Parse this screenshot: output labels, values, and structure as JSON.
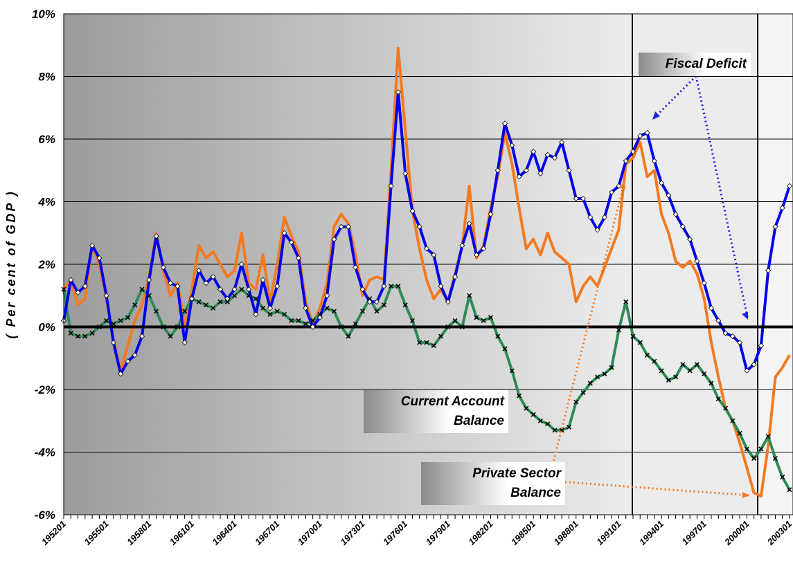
{
  "chart_data": {
    "type": "line",
    "y_label": "( Per cent of GDP )",
    "categories": [
      "195201",
      null,
      null,
      null,
      null,
      null,
      "195501",
      null,
      null,
      null,
      null,
      null,
      "195801",
      null,
      null,
      null,
      null,
      null,
      "196101",
      null,
      null,
      null,
      null,
      null,
      "196401",
      null,
      null,
      null,
      null,
      null,
      "196701",
      null,
      null,
      null,
      null,
      null,
      "197001",
      null,
      null,
      null,
      null,
      null,
      "197301",
      null,
      null,
      null,
      null,
      null,
      "197601",
      null,
      null,
      null,
      null,
      null,
      "197901",
      null,
      null,
      null,
      null,
      null,
      "198201",
      null,
      null,
      null,
      null,
      null,
      "198501",
      null,
      null,
      null,
      null,
      null,
      "198801",
      null,
      null,
      null,
      null,
      null,
      "199101",
      null,
      null,
      null,
      null,
      null,
      "199401",
      null,
      null,
      null,
      null,
      null,
      "199701",
      null,
      null,
      null,
      null,
      null,
      "200001",
      null,
      null,
      null,
      null,
      null,
      "200301"
    ],
    "series": [
      {
        "name": "Private Sector Balance",
        "color": "#f47a20",
        "marker": "none",
        "values": [
          1.2,
          1.5,
          0.7,
          0.9,
          2.6,
          2.0,
          0.9,
          -0.4,
          -1.4,
          -0.6,
          0.2,
          0.7,
          1.6,
          3.0,
          1.8,
          1.0,
          1.4,
          0.0,
          1.2,
          2.6,
          2.2,
          2.4,
          2.0,
          1.6,
          1.8,
          3.0,
          1.4,
          1.2,
          2.3,
          0.8,
          2.0,
          3.5,
          2.9,
          2.4,
          0.8,
          0.1,
          0.6,
          1.4,
          3.2,
          3.6,
          3.3,
          2.3,
          1.0,
          1.5,
          1.6,
          1.5,
          5.0,
          8.9,
          6.3,
          3.7,
          2.5,
          1.5,
          0.9,
          1.2,
          0.8,
          1.7,
          2.6,
          4.5,
          2.2,
          2.6,
          3.8,
          4.8,
          6.2,
          5.2,
          3.8,
          2.5,
          2.8,
          2.3,
          3.0,
          2.4,
          2.2,
          2.0,
          0.8,
          1.3,
          1.6,
          1.3,
          1.9,
          2.5,
          3.1,
          5.2,
          5.4,
          5.9,
          4.8,
          5.0,
          3.6,
          3.0,
          2.1,
          1.9,
          2.1,
          1.7,
          0.9,
          -0.5,
          -1.6,
          -2.6,
          -3.0,
          -3.7,
          -4.5,
          -5.3,
          -5.4,
          -3.8,
          -1.6,
          -1.3,
          -0.9
        ]
      },
      {
        "name": "Current Account Balance",
        "color": "#2e8b57",
        "marker": "x",
        "values": [
          1.2,
          -0.2,
          -0.3,
          -0.3,
          -0.2,
          0.0,
          0.2,
          0.1,
          0.2,
          0.3,
          0.7,
          1.2,
          1.0,
          0.5,
          0.0,
          -0.3,
          0.0,
          0.5,
          0.9,
          0.8,
          0.7,
          0.6,
          0.8,
          0.8,
          1.0,
          1.2,
          1.0,
          0.9,
          0.6,
          0.4,
          0.5,
          0.4,
          0.2,
          0.2,
          0.1,
          0.2,
          0.4,
          0.6,
          0.5,
          0.0,
          -0.3,
          0.1,
          0.5,
          0.9,
          0.5,
          0.7,
          1.3,
          1.3,
          0.7,
          0.2,
          -0.5,
          -0.5,
          -0.6,
          -0.3,
          0.0,
          0.2,
          0.0,
          1.0,
          0.3,
          0.2,
          0.3,
          -0.3,
          -0.7,
          -1.4,
          -2.2,
          -2.6,
          -2.8,
          -3.0,
          -3.1,
          -3.3,
          -3.3,
          -3.2,
          -2.4,
          -2.1,
          -1.8,
          -1.6,
          -1.5,
          -1.3,
          -0.1,
          0.8,
          -0.3,
          -0.5,
          -0.9,
          -1.1,
          -1.4,
          -1.7,
          -1.6,
          -1.2,
          -1.4,
          -1.2,
          -1.5,
          -1.8,
          -2.3,
          -2.6,
          -3.0,
          -3.4,
          -3.9,
          -4.2,
          -3.9,
          -3.5,
          -4.2,
          -4.8,
          -5.2
        ]
      },
      {
        "name": "Fiscal Deficit",
        "color": "#0000ee",
        "marker": "diamond",
        "values": [
          0.2,
          1.5,
          1.1,
          1.3,
          2.6,
          2.2,
          1.0,
          -0.5,
          -1.5,
          -1.1,
          -0.9,
          -0.3,
          1.5,
          2.9,
          1.9,
          1.4,
          1.3,
          -0.5,
          0.9,
          1.8,
          1.4,
          1.6,
          1.2,
          0.9,
          1.2,
          2.0,
          1.2,
          0.4,
          1.5,
          0.6,
          1.3,
          3.0,
          2.7,
          2.2,
          0.6,
          0.0,
          0.3,
          1.0,
          2.8,
          3.2,
          3.2,
          1.9,
          1.2,
          0.8,
          0.8,
          1.3,
          4.5,
          7.5,
          4.9,
          3.7,
          3.2,
          2.5,
          2.3,
          1.3,
          0.8,
          1.6,
          2.6,
          3.3,
          2.3,
          2.5,
          3.6,
          5.0,
          6.5,
          5.8,
          4.8,
          5.0,
          5.6,
          4.9,
          5.5,
          5.4,
          5.9,
          5.0,
          4.1,
          4.1,
          3.5,
          3.1,
          3.5,
          4.3,
          4.5,
          5.3,
          5.6,
          6.1,
          6.2,
          5.3,
          4.6,
          4.2,
          3.6,
          3.2,
          2.8,
          2.1,
          1.4,
          0.6,
          0.2,
          -0.2,
          -0.3,
          -0.5,
          -1.4,
          -1.2,
          -0.6,
          1.8,
          3.2,
          3.8,
          4.5
        ]
      }
    ],
    "ylim": [
      -6,
      10
    ],
    "yticks": [
      {
        "value": -6,
        "label": "-6%"
      },
      {
        "value": -4,
        "label": "-4%"
      },
      {
        "value": -2,
        "label": "-2%"
      },
      {
        "value": 0,
        "label": "0%"
      },
      {
        "value": 2,
        "label": "2%"
      },
      {
        "value": 4,
        "label": "4%"
      },
      {
        "value": 6,
        "label": "6%"
      },
      {
        "value": 8,
        "label": "8%"
      },
      {
        "value": 10,
        "label": "10%"
      }
    ],
    "grid": true,
    "zero_line": true
  }
}
